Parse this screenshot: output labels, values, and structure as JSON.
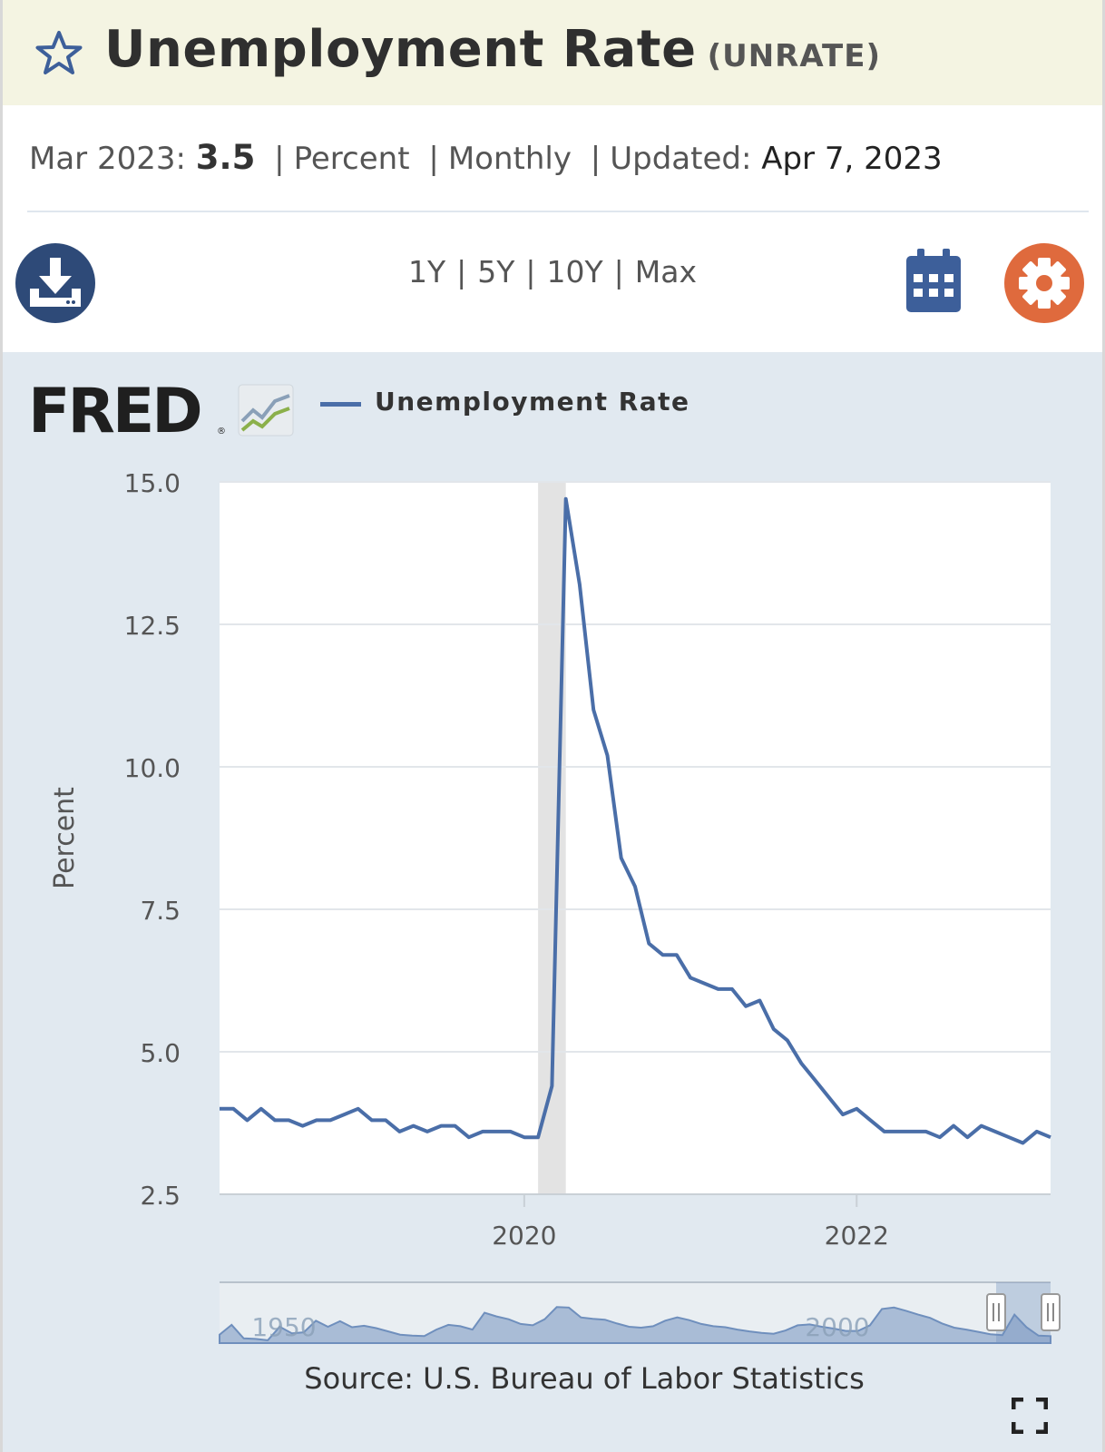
{
  "header": {
    "title": "Unemployment Rate",
    "series_id": "(UNRATE)",
    "star_icon": "star-icon"
  },
  "meta": {
    "date_label": "Mar 2023:",
    "value": "3.5",
    "units": "Percent",
    "frequency": "Monthly",
    "updated_label": "Updated:",
    "updated_value": "Apr 7, 2023"
  },
  "toolbar": {
    "download_icon": "download-icon",
    "ranges": [
      "1Y",
      "5Y",
      "10Y",
      "Max"
    ],
    "calendar_icon": "calendar-icon",
    "settings_icon": "gear-icon"
  },
  "legend": {
    "logo_text": "FRED",
    "series_name": "Unemployment Rate"
  },
  "source": "Source: U.S. Bureau of Labor Statistics",
  "colors": {
    "line": "#4a6ea8",
    "panel": "#e1e9f0",
    "recession": "#e3e3e3",
    "accent_orange": "#df6a3d",
    "accent_navy": "#2e4a78"
  },
  "chart_data": {
    "type": "line",
    "ylabel": "Percent",
    "ylim": [
      2.5,
      15.0
    ],
    "yticks": [
      "15.0",
      "12.5",
      "10.0",
      "7.5",
      "5.0",
      "2.5"
    ],
    "xticks": [
      "2020",
      "2022"
    ],
    "grid": true,
    "recession_shading": [
      "2020-02",
      "2020-04"
    ],
    "series": [
      {
        "name": "Unemployment Rate",
        "x": [
          "2018-03",
          "2018-04",
          "2018-05",
          "2018-06",
          "2018-07",
          "2018-08",
          "2018-09",
          "2018-10",
          "2018-11",
          "2018-12",
          "2019-01",
          "2019-02",
          "2019-03",
          "2019-04",
          "2019-05",
          "2019-06",
          "2019-07",
          "2019-08",
          "2019-09",
          "2019-10",
          "2019-11",
          "2019-12",
          "2020-01",
          "2020-02",
          "2020-03",
          "2020-04",
          "2020-05",
          "2020-06",
          "2020-07",
          "2020-08",
          "2020-09",
          "2020-10",
          "2020-11",
          "2020-12",
          "2021-01",
          "2021-02",
          "2021-03",
          "2021-04",
          "2021-05",
          "2021-06",
          "2021-07",
          "2021-08",
          "2021-09",
          "2021-10",
          "2021-11",
          "2021-12",
          "2022-01",
          "2022-02",
          "2022-03",
          "2022-04",
          "2022-05",
          "2022-06",
          "2022-07",
          "2022-08",
          "2022-09",
          "2022-10",
          "2022-11",
          "2022-12",
          "2023-01",
          "2023-02",
          "2023-03"
        ],
        "values": [
          4.0,
          4.0,
          3.8,
          4.0,
          3.8,
          3.8,
          3.7,
          3.8,
          3.8,
          3.9,
          4.0,
          3.8,
          3.8,
          3.6,
          3.7,
          3.6,
          3.7,
          3.7,
          3.5,
          3.6,
          3.6,
          3.6,
          3.5,
          3.5,
          4.4,
          14.7,
          13.2,
          11.0,
          10.2,
          8.4,
          7.9,
          6.9,
          6.7,
          6.7,
          6.3,
          6.2,
          6.1,
          6.1,
          5.8,
          5.9,
          5.4,
          5.2,
          4.8,
          4.5,
          4.2,
          3.9,
          4.0,
          3.8,
          3.6,
          3.6,
          3.6,
          3.6,
          3.5,
          3.7,
          3.5,
          3.7,
          3.6,
          3.5,
          3.4,
          3.6,
          3.5
        ]
      }
    ],
    "navigator": {
      "xticks": [
        "1950",
        "2000"
      ],
      "values": [
        3.8,
        5.9,
        3.0,
        2.9,
        2.6,
        5.5,
        4.1,
        4.3,
        6.8,
        5.5,
        6.7,
        5.4,
        5.7,
        5.2,
        4.5,
        3.8,
        3.6,
        3.5,
        4.9,
        5.9,
        5.6,
        4.9,
        8.5,
        7.7,
        7.1,
        6.1,
        5.8,
        7.1,
        9.7,
        9.6,
        7.5,
        7.2,
        7.0,
        6.2,
        5.5,
        5.3,
        5.6,
        6.8,
        7.5,
        6.9,
        6.1,
        5.6,
        5.4,
        4.9,
        4.5,
        4.2,
        4.0,
        4.7,
        5.8,
        6.0,
        5.5,
        5.1,
        4.6,
        4.6,
        5.8,
        9.3,
        9.6,
        8.9,
        8.1,
        7.4,
        6.2,
        5.3,
        4.9,
        4.4,
        3.9,
        3.7,
        8.1,
        5.4,
        3.6,
        3.5
      ]
    }
  }
}
